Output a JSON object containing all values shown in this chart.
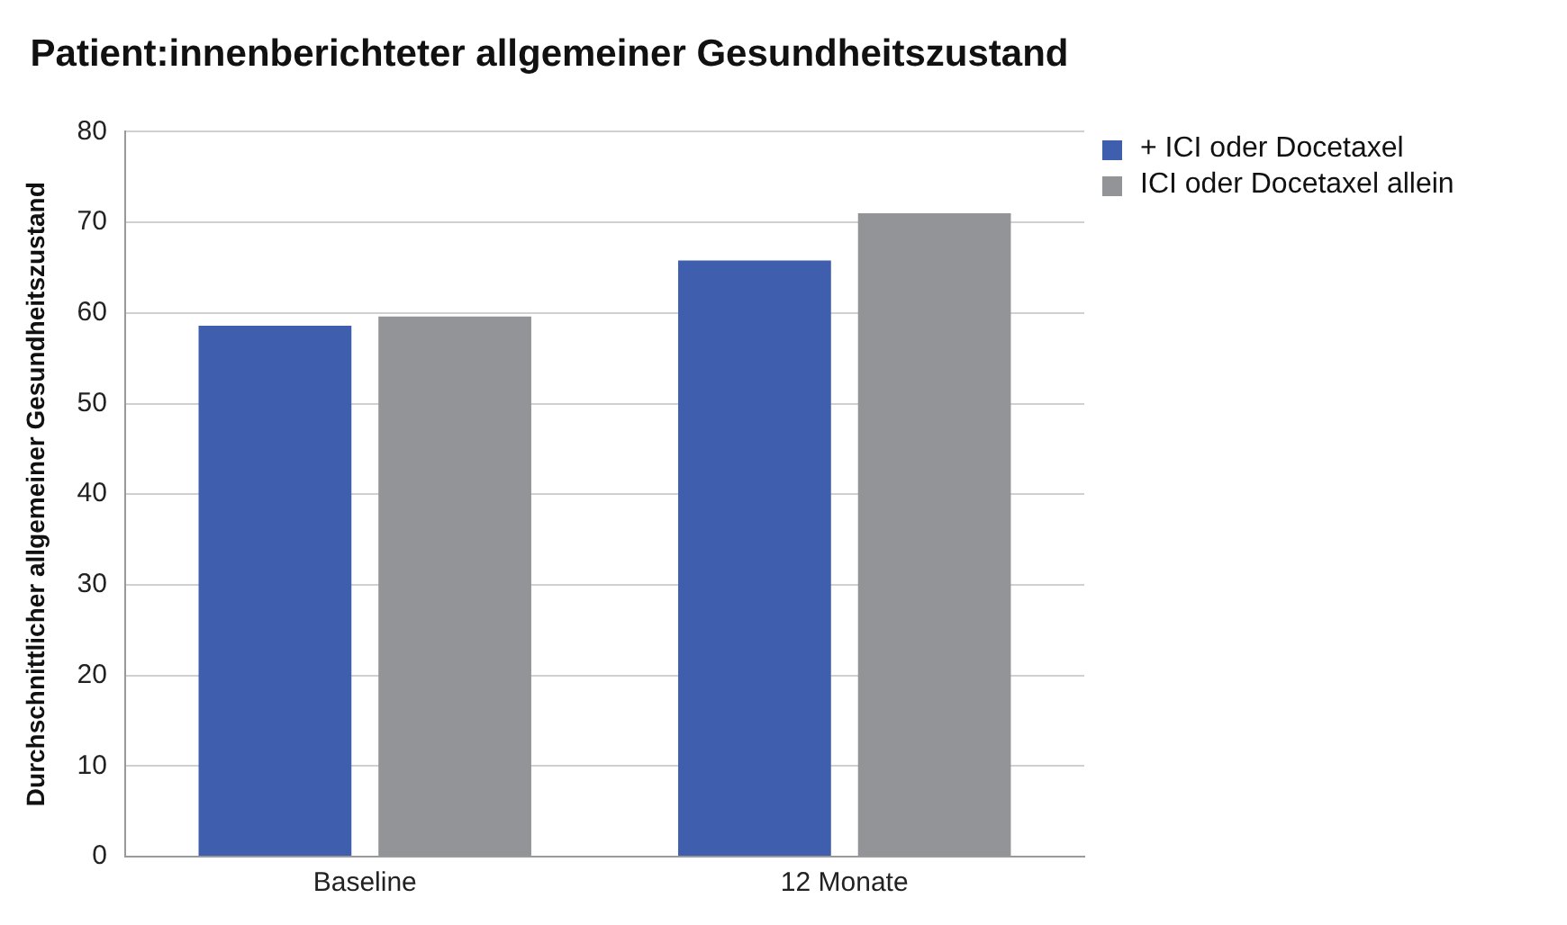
{
  "chart_data": {
    "type": "bar",
    "title": "Patient:innenberichteter allgemeiner Gesundheitszustand",
    "ylabel": "Durchschnittlicher allgemeiner Gesundheitszustand",
    "categories": [
      "Baseline",
      "12 Monate"
    ],
    "series": [
      {
        "name": "+ ICI oder Docetaxel",
        "color": "#3f5fae",
        "values": [
          58.6,
          65.8
        ]
      },
      {
        "name": "ICI oder Docetaxel allein",
        "color": "#939497",
        "values": [
          59.6,
          71.0
        ]
      }
    ],
    "ylim": [
      0,
      80
    ],
    "yticks": [
      0,
      10,
      20,
      30,
      40,
      50,
      60,
      70,
      80
    ],
    "grid": "y",
    "legend": "right"
  }
}
